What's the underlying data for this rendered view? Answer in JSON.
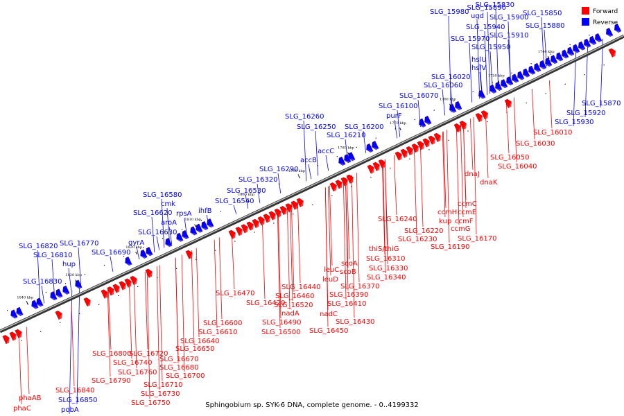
{
  "caption": "Sphingobium sp. SYK-6 DNA, complete genome. - 0..4199332",
  "legend": [
    {
      "label": "Forward",
      "color": "#ff0000"
    },
    {
      "label": "Reverse",
      "color": "#0000ff"
    }
  ],
  "colors": {
    "forward": "#ff0000",
    "reverse": "#0000ff",
    "backbone": "#555555"
  },
  "ticks": [
    "1840 kbp",
    "1830 kbp",
    "1820 kbp",
    "1810 kbp",
    "1800 kbp",
    "1790 kbp",
    "1780 kbp",
    "1770 kbp",
    "1760 kbp",
    "1750 kbp",
    "1740 kbp"
  ],
  "reverse_labels": [
    "SLG_15830",
    "SLG_15890",
    "SLG_15980",
    "ugd",
    "SLG_15900",
    "SLG_15850",
    "SLG_15940",
    "SLG_15880",
    "SLG_15910",
    "SLG_15970",
    "SLG_15950",
    "hslU",
    "hslV",
    "SLG_16020",
    "SLG_16060",
    "SLG_16070",
    "SLG_16100",
    "purF",
    "SLG_16260",
    "SLG_16250",
    "SLG_16200",
    "SLG_16210",
    "accC",
    "accB",
    "SLG_16290",
    "SLG_16320",
    "SLG_16530",
    "SLG_16540",
    "SLG_16580",
    "cmk",
    "rpsA",
    "ihfB",
    "SLG_16620",
    "aroA",
    "SLG_16630",
    "gyrA",
    "SLG_16690",
    "SLG_16820",
    "SLG_16770",
    "SLG_16810",
    "hup",
    "SLG_16830",
    "SLG_15870",
    "SLG_15920",
    "SLG_15930",
    "SLG_16850",
    "pobA"
  ],
  "forward_labels": [
    "SLG_16010",
    "SLG_16030",
    "SLG_16050",
    "SLG_16040",
    "dnaJ",
    "dnaK",
    "ccmC",
    "ccmE",
    "ccmH",
    "ccmF",
    "kup",
    "ccmG",
    "SLG_16240",
    "SLG_16220",
    "SLG_16230",
    "SLG_16170",
    "SLG_16190",
    "thiS/thiG",
    "SLG_16310",
    "scoA",
    "scoB",
    "SLG_16330",
    "leuC",
    "SLG_16340",
    "leuD",
    "SLG_16370",
    "SLG_16440",
    "SLG_16390",
    "SLG_16460",
    "SLG_16410",
    "SLG_16470",
    "SLG_16420",
    "SLG_16520",
    "nadC",
    "nadA",
    "SLG_16430",
    "SLG_16490",
    "SLG_16500",
    "SLG_16450",
    "SLG_16600",
    "SLG_16610",
    "SLG_16640",
    "SLG_16650",
    "SLG_16670",
    "SLG_16680",
    "SLG_16800",
    "SLG_16720",
    "SLG_16740",
    "SLG_16760",
    "SLG_16700",
    "SLG_16790",
    "SLG_16710",
    "SLG_16730",
    "SLG_16750",
    "SLG_16840",
    "phaAB",
    "phaC"
  ]
}
